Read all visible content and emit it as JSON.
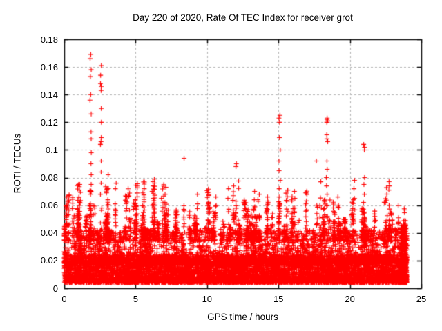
{
  "chart_data": {
    "type": "scatter",
    "title": "Day 220 of 2020, Rate Of TEC Index for receiver grot",
    "xlabel": "GPS time / hours",
    "ylabel": "ROTI / TECUs",
    "xlim": [
      0,
      25
    ],
    "ylim": [
      0,
      0.18
    ],
    "grid": true,
    "grid_style": "dashed",
    "legend": "none",
    "xticks": {
      "values": [
        0,
        5,
        10,
        15,
        20,
        25
      ],
      "labels": [
        "0",
        "5",
        "10",
        "15",
        "20",
        "25"
      ]
    },
    "yticks": {
      "values": [
        0,
        0.02,
        0.04,
        0.06,
        0.08,
        0.1,
        0.12,
        0.14,
        0.16,
        0.18
      ],
      "labels": [
        "0",
        "0.02",
        "0.04",
        "0.06",
        "0.08",
        "0.1",
        "0.12",
        "0.14",
        "0.16",
        "0.18"
      ]
    },
    "colors": {
      "marker": "#ff0000",
      "axis": "#000000",
      "grid": "#b4b4b4",
      "background": "#ffffff",
      "text": "#000000"
    },
    "marker": {
      "shape": "plus",
      "size": 7,
      "line_width": 1.1
    },
    "x_data_range": [
      0,
      24
    ],
    "description": "Dense band of ROTI values between ~0.004 and ~0.04 TECUs across all 24 hours, with vertical burst columns and large spikes near 02:00 (to ~0.167), 15:00 (~0.125), 18:30 (~0.123) and 21:00 (~0.104).",
    "spikes": [
      {
        "x": 1.85,
        "ys": [
          0.169,
          0.166,
          0.158,
          0.153,
          0.14,
          0.136,
          0.126,
          0.113,
          0.108,
          0.098,
          0.09,
          0.082,
          0.075,
          0.068,
          0.06,
          0.052
        ]
      },
      {
        "x": 2.58,
        "ys": [
          0.161,
          0.154,
          0.148,
          0.146,
          0.143,
          0.13,
          0.12,
          0.109,
          0.106,
          0.104,
          0.092,
          0.084,
          0.076,
          0.068,
          0.058
        ]
      },
      {
        "x": 15.08,
        "ys": [
          0.125,
          0.123,
          0.12,
          0.109,
          0.1,
          0.092,
          0.085,
          0.078,
          0.072,
          0.066,
          0.06,
          0.054,
          0.048
        ]
      },
      {
        "x": 18.4,
        "ys": [
          0.123,
          0.122,
          0.121,
          0.12,
          0.111,
          0.108,
          0.106,
          0.092,
          0.086,
          0.08,
          0.074,
          0.068,
          0.06,
          0.052
        ]
      },
      {
        "x": 21.0,
        "ys": [
          0.104,
          0.102,
          0.1,
          0.08,
          0.075,
          0.068,
          0.062,
          0.055
        ]
      },
      {
        "x": 8.38,
        "ys": [
          0.094,
          0.056,
          0.05
        ]
      },
      {
        "x": 12.02,
        "ys": [
          0.09,
          0.088,
          0.063,
          0.058,
          0.052
        ]
      },
      {
        "x": 17.7,
        "ys": [
          0.092,
          0.06,
          0.054
        ]
      },
      {
        "x": 22.75,
        "ys": [
          0.077,
          0.074,
          0.071,
          0.06
        ]
      },
      {
        "x": 6.2,
        "ys": [
          0.077,
          0.074,
          0.07,
          0.065,
          0.06,
          0.055
        ]
      },
      {
        "x": 1.05,
        "ys": [
          0.075,
          0.071,
          0.066,
          0.06
        ]
      },
      {
        "x": 3.6,
        "ys": [
          0.076,
          0.072,
          0.061,
          0.055
        ]
      },
      {
        "x": 3.05,
        "ys": [
          0.082,
          0.072,
          0.064
        ]
      },
      {
        "x": 0.15,
        "ys": [
          0.066,
          0.06,
          0.055
        ]
      },
      {
        "x": 5.0,
        "ys": [
          0.064,
          0.059
        ]
      },
      {
        "x": 7.1,
        "ys": [
          0.073,
          0.068,
          0.062
        ]
      },
      {
        "x": 9.3,
        "ys": [
          0.068,
          0.061
        ]
      },
      {
        "x": 10.6,
        "ys": [
          0.066,
          0.06
        ]
      },
      {
        "x": 11.5,
        "ys": [
          0.072,
          0.065
        ]
      },
      {
        "x": 13.3,
        "ys": [
          0.07,
          0.064,
          0.058
        ]
      },
      {
        "x": 14.2,
        "ys": [
          0.066,
          0.06
        ]
      },
      {
        "x": 16.1,
        "ys": [
          0.07,
          0.065,
          0.058
        ]
      },
      {
        "x": 19.2,
        "ys": [
          0.066,
          0.06
        ]
      },
      {
        "x": 20.3,
        "ys": [
          0.078,
          0.072,
          0.065
        ]
      },
      {
        "x": 21.75,
        "ys": [
          0.052,
          0.049
        ]
      },
      {
        "x": 23.4,
        "ys": [
          0.051,
          0.047
        ]
      },
      {
        "x": 23.85,
        "ys": [
          0.046,
          0.044,
          0.042
        ]
      }
    ],
    "generation": {
      "seed": 20200807,
      "x_max": 24,
      "base": {
        "count": 7200,
        "y_min": 0.004,
        "spread": 0.02,
        "exponent": 1.7
      },
      "upper": {
        "count": 3400,
        "y_min": 0.018,
        "spread": 0.024,
        "exponent": 2.6,
        "cluster_fraction": 0.45,
        "cluster_count": 110,
        "cluster_width": 0.18
      },
      "bursts": {
        "count": 120,
        "y_base": 0.034,
        "max_min": 0.042,
        "max_extra": 0.04,
        "max_exponent": 2.8,
        "points_min": 6,
        "points_max": 26,
        "width": 0.14
      },
      "right_edge": {
        "count": 420,
        "x_start": 23.55,
        "x_end": 24.0,
        "y_min": 0.004,
        "spread": 0.042,
        "exponent": 2.2
      },
      "spike_trunk": {
        "points": 8,
        "y_base": 0.034,
        "span": 0.026,
        "jitter": 0.1
      }
    }
  }
}
